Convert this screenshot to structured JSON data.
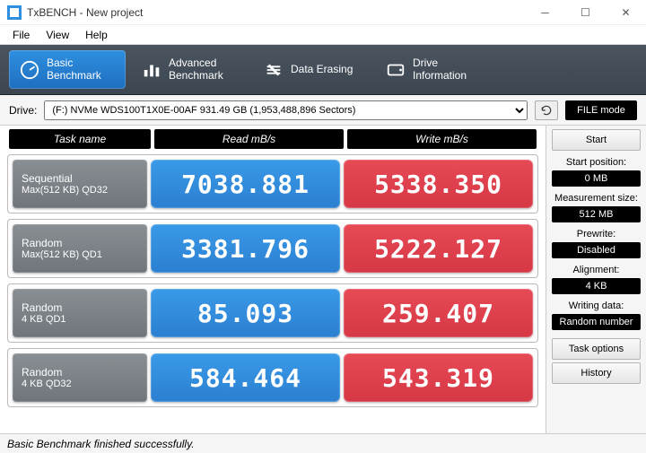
{
  "window": {
    "title": "TxBENCH - New project"
  },
  "menu": {
    "file": "File",
    "view": "View",
    "help": "Help"
  },
  "tabs": {
    "basic": {
      "line1": "Basic",
      "line2": "Benchmark"
    },
    "advanced": {
      "line1": "Advanced",
      "line2": "Benchmark"
    },
    "erase": {
      "line1": "Data Erasing",
      "line2": ""
    },
    "drive": {
      "line1": "Drive",
      "line2": "Information"
    }
  },
  "drivebar": {
    "label": "Drive:",
    "selected": "(F:) NVMe WDS100T1X0E-00AF  931.49 GB (1,953,488,896 Sectors)",
    "filemode": "FILE mode"
  },
  "headers": {
    "task": "Task name",
    "read": "Read mB/s",
    "write": "Write mB/s"
  },
  "rows": [
    {
      "task_l1": "Sequential",
      "task_l2": "Max(512 KB) QD32",
      "read": "7038.881",
      "write": "5338.350"
    },
    {
      "task_l1": "Random",
      "task_l2": "Max(512 KB) QD1",
      "read": "3381.796",
      "write": "5222.127"
    },
    {
      "task_l1": "Random",
      "task_l2": "4 KB QD1",
      "read": "85.093",
      "write": "259.407"
    },
    {
      "task_l1": "Random",
      "task_l2": "4 KB QD32",
      "read": "584.464",
      "write": "543.319"
    }
  ],
  "sidebar": {
    "start": "Start",
    "start_pos_label": "Start position:",
    "start_pos": "0 MB",
    "meas_label": "Measurement size:",
    "meas": "512 MB",
    "prewrite_label": "Prewrite:",
    "prewrite": "Disabled",
    "align_label": "Alignment:",
    "align": "4 KB",
    "wdata_label": "Writing data:",
    "wdata": "Random number",
    "task_options": "Task options",
    "history": "History"
  },
  "status": "Basic Benchmark finished successfully.",
  "colors": {
    "read_bg": "#2e8fe0",
    "write_bg": "#e64a55",
    "task_bg": "#7a8086",
    "tabbar_bg": "#3f4953"
  }
}
